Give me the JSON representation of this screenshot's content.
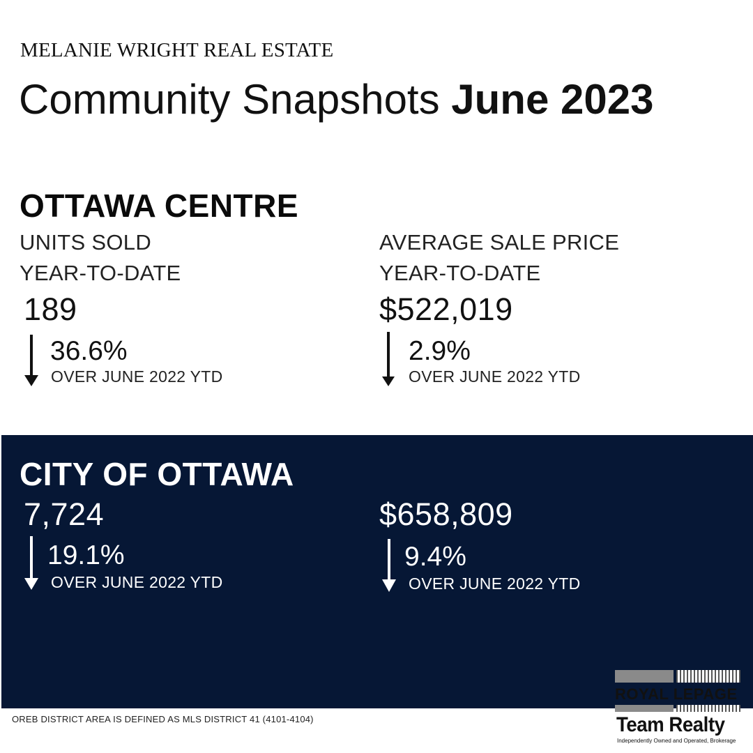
{
  "brand": "MELANIE WRIGHT REAL ESTATE",
  "headline": {
    "light": "Community Snapshots",
    "bold": "June 2023"
  },
  "ottawa_centre": {
    "title": "OTTAWA CENTRE",
    "units": {
      "label": "UNITS SOLD",
      "sublabel": "YEAR-TO-DATE",
      "value": "189",
      "change": "36.6%",
      "direction": "down",
      "note": "OVER JUNE 2022 YTD"
    },
    "price": {
      "label": "AVERAGE SALE PRICE",
      "sublabel": "YEAR-TO-DATE",
      "value": "$522,019",
      "change": "2.9%",
      "direction": "down",
      "note": "OVER JUNE 2022 YTD"
    }
  },
  "city_of_ottawa": {
    "title": "CITY OF OTTAWA",
    "units": {
      "value": "7,724",
      "change": "19.1%",
      "direction": "down",
      "note": "OVER JUNE 2022 YTD"
    },
    "price": {
      "value": "$658,809",
      "change": "9.4%",
      "direction": "down",
      "note": "OVER JUNE 2022 YTD"
    }
  },
  "footnote": "OREB DISTRICT AREA IS DEFINED AS MLS DISTRICT 41 (4101-4104)",
  "logo": {
    "line1": "ROYAL LEPAGE",
    "line2": "Team Realty",
    "line3": "Independently Owned and Operated, Brokerage"
  },
  "colors": {
    "navy_panel": "#061735",
    "text": "#111111"
  },
  "icons": {
    "change_arrow": "arrow-down-icon"
  }
}
